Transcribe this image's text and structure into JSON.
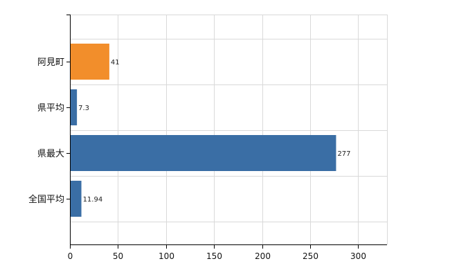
{
  "chart_data": {
    "type": "bar",
    "orientation": "horizontal",
    "categories": [
      "阿見町",
      "県平均",
      "県最大",
      "全国平均"
    ],
    "values": [
      41,
      7.3,
      277,
      11.94
    ],
    "value_labels": [
      "41",
      "7.3",
      "277",
      "11.94"
    ],
    "bar_colors": [
      "#f28e2b",
      "#3a6ea5",
      "#3a6ea5",
      "#3a6ea5"
    ],
    "xlim": [
      0,
      330
    ],
    "xticks": [
      0,
      50,
      100,
      150,
      200,
      250,
      300
    ],
    "xtick_labels": [
      "0",
      "50",
      "100",
      "150",
      "200",
      "250",
      "300"
    ],
    "grid": true,
    "gridline_color": "#d9d9d9"
  }
}
